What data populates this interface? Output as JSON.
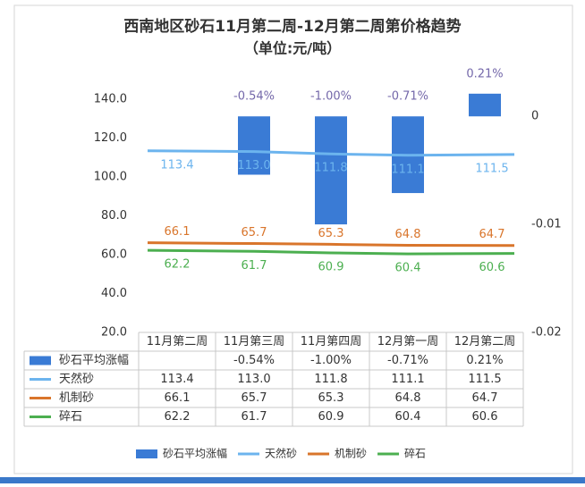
{
  "chart_data": {
    "type": "combo",
    "title": "西南地区砂石11月第二周-12月第二周第价格趋势",
    "subtitle": "（单位:元/吨）",
    "categories": [
      "11月第二周",
      "11月第三周",
      "11月第四周",
      "12月第一周",
      "12月第二周"
    ],
    "series": [
      {
        "name": "砂石平均涨幅",
        "type": "bar",
        "axis": "y2",
        "color": "#3a7bd5",
        "values": [
          null,
          -0.0054,
          -0.01,
          -0.0071,
          0.0021
        ],
        "value_labels": [
          null,
          "-0.54%",
          "-1.00%",
          "-0.71%",
          "0.21%"
        ]
      },
      {
        "name": "天然砂",
        "type": "line",
        "color": "#6cb4ee",
        "values": [
          113.4,
          113.0,
          111.8,
          111.1,
          111.5
        ],
        "value_labels": [
          "113.4",
          "113.0",
          "111.8",
          "111.1",
          "111.5"
        ]
      },
      {
        "name": "机制砂",
        "type": "line",
        "color": "#d9752b",
        "values": [
          66.1,
          65.7,
          65.3,
          64.8,
          64.7
        ],
        "value_labels": [
          "66.1",
          "65.7",
          "65.3",
          "64.8",
          "64.7"
        ]
      },
      {
        "name": "碎石",
        "type": "line",
        "color": "#4caf50",
        "values": [
          62.2,
          61.7,
          60.9,
          60.4,
          60.6
        ],
        "value_labels": [
          "62.2",
          "61.7",
          "60.9",
          "60.4",
          "60.6"
        ]
      }
    ],
    "ylim": [
      20,
      145
    ],
    "yticks": [
      {
        "value": 20,
        "label": "20.0"
      },
      {
        "value": 40,
        "label": "40.0"
      },
      {
        "value": 60,
        "label": "60.0"
      },
      {
        "value": 80,
        "label": "80.0"
      },
      {
        "value": 100,
        "label": "100.0"
      },
      {
        "value": 120,
        "label": "120.0"
      },
      {
        "value": 140,
        "label": "140.0"
      }
    ],
    "y2lim": [
      -0.02,
      0.0025
    ],
    "y2ticks": [
      0,
      -0.01,
      -0.02
    ],
    "grid": false
  }
}
